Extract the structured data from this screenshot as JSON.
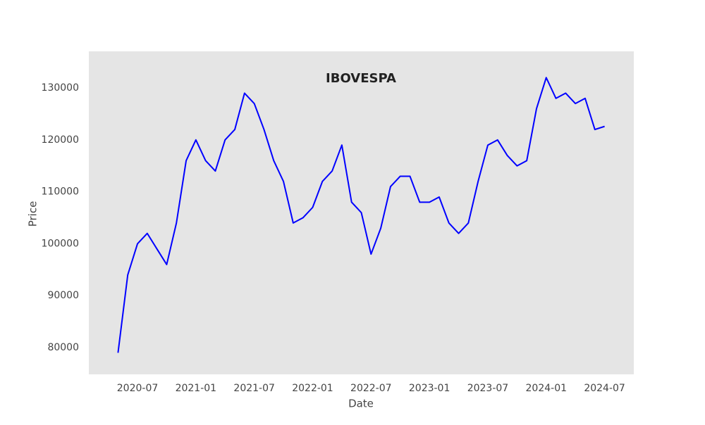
{
  "chart_data": {
    "type": "line",
    "title": "IBOVESPA",
    "x_label": "Date",
    "y_label": "Price",
    "x": [
      "2020-05",
      "2020-06",
      "2020-07",
      "2020-08",
      "2020-09",
      "2020-10",
      "2020-11",
      "2020-12",
      "2021-01",
      "2021-02",
      "2021-03",
      "2021-04",
      "2021-05",
      "2021-06",
      "2021-07",
      "2021-08",
      "2021-09",
      "2021-10",
      "2021-11",
      "2021-12",
      "2022-01",
      "2022-02",
      "2022-03",
      "2022-04",
      "2022-05",
      "2022-06",
      "2022-07",
      "2022-08",
      "2022-09",
      "2022-10",
      "2022-11",
      "2022-12",
      "2023-01",
      "2023-02",
      "2023-03",
      "2023-04",
      "2023-05",
      "2023-06",
      "2023-07",
      "2023-08",
      "2023-09",
      "2023-10",
      "2023-11",
      "2023-12",
      "2024-01",
      "2024-02",
      "2024-03",
      "2024-04",
      "2024-05",
      "2024-06",
      "2024-07"
    ],
    "values": [
      79000,
      94000,
      100000,
      102000,
      99000,
      96000,
      104000,
      116000,
      120000,
      116000,
      114000,
      120000,
      122000,
      129000,
      127000,
      122000,
      116000,
      112000,
      104000,
      105000,
      107000,
      112000,
      114000,
      119000,
      108000,
      106000,
      98000,
      103000,
      111000,
      113000,
      113000,
      108000,
      108000,
      109000,
      104000,
      102000,
      104000,
      112000,
      119000,
      120000,
      117000,
      115000,
      116000,
      126000,
      132000,
      128000,
      129000,
      127000,
      128000,
      122000,
      122600
    ],
    "color": "#0000ff",
    "xlim": [
      "2020-02",
      "2024-10"
    ],
    "xticks": [
      "2020-07",
      "2021-01",
      "2021-07",
      "2022-01",
      "2022-07",
      "2023-01",
      "2023-07",
      "2024-01",
      "2024-07"
    ],
    "ylim": [
      74850,
      137050
    ],
    "yticks": [
      80000,
      90000,
      100000,
      110000,
      120000,
      130000
    ],
    "grid": false
  }
}
